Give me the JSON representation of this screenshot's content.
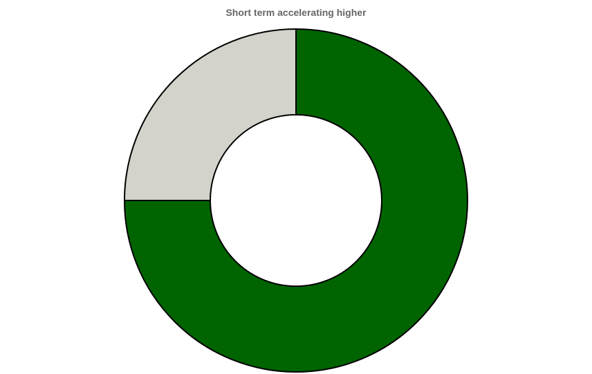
{
  "chart_data": {
    "type": "pie",
    "variant": "donut",
    "title": "Short term accelerating higher",
    "slices": [
      {
        "value": 75,
        "color": "#006400"
      },
      {
        "value": 25,
        "color": "#d3d3cb"
      }
    ],
    "start_angle_deg": 0,
    "direction": "clockwise",
    "stroke_color": "#000000",
    "legend": "none"
  }
}
